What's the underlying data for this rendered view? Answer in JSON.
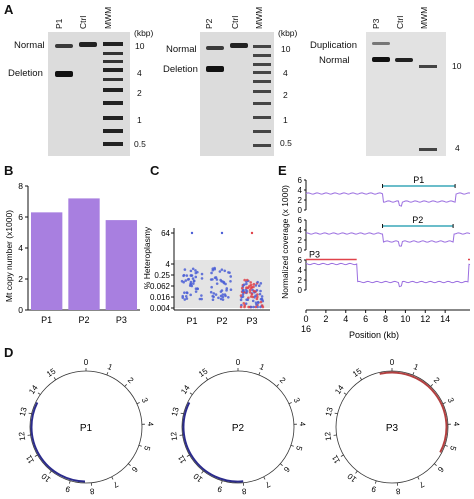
{
  "panels": {
    "a": "A",
    "b": "B",
    "c": "C",
    "d": "D",
    "e": "E"
  },
  "gel": {
    "lanes_left": [
      "P1",
      "Ctrl",
      "MWM"
    ],
    "lanes_mid": [
      "P2",
      "Ctrl",
      "MWM"
    ],
    "lanes_right": [
      "P3",
      "Ctrl",
      "MWM"
    ],
    "left_labels": [
      "Normal",
      "Deletion"
    ],
    "mid_labels": [
      "Normal",
      "Deletion"
    ],
    "right_labels": [
      "Duplication",
      "Normal"
    ],
    "kbp": "(kbp)",
    "markers_left": [
      "10",
      "4",
      "2",
      "1",
      "0.5"
    ],
    "markers_mid": [
      "10",
      "4",
      "2",
      "1",
      "0.5"
    ],
    "markers_right": [
      "10",
      "4"
    ]
  },
  "chart_b": {
    "type": "bar",
    "ylabel": "Mt copy number (x1000)",
    "categories": [
      "P1",
      "P2",
      "P3"
    ],
    "values": [
      6.3,
      7.2,
      5.8
    ],
    "yticks": [
      "0",
      "2",
      "4",
      "6",
      "8"
    ],
    "ylim": [
      0,
      8
    ],
    "color": "#a87fe0"
  },
  "chart_c": {
    "type": "scatter",
    "ylabel": "% Heteroplasmy",
    "categories": [
      "P1",
      "P2",
      "P3"
    ],
    "yticks": [
      "64",
      "4",
      "0.25",
      "0.062",
      "0.016",
      "0.004"
    ],
    "colors": {
      "low": "#4b5fd6",
      "high": "#e0434a"
    }
  },
  "chart_e": {
    "type": "line",
    "ylabel": "Normalized coverage (x 1000)",
    "xlabel": "Position (kb)",
    "xticks": [
      "0",
      "2",
      "4",
      "6",
      "8",
      "10",
      "12",
      "14"
    ],
    "xtick_end": "16",
    "yticks": [
      "0",
      "2",
      "4",
      "6"
    ],
    "tracks": [
      "P1",
      "P2",
      "P3"
    ],
    "line_color": "#9b6fe0",
    "span_color": "#3aa7b8",
    "dup_color": "#e0434a"
  },
  "circles": {
    "labels": [
      "P1",
      "P2",
      "P3"
    ],
    "ticks": [
      "0",
      "1",
      "2",
      "3",
      "4",
      "5",
      "6",
      "7",
      "8",
      "9",
      "10",
      "11",
      "12",
      "13",
      "14",
      "15"
    ],
    "arc_colors": [
      "#2b2b8c",
      "#2b2b8c",
      "#b34040"
    ]
  }
}
